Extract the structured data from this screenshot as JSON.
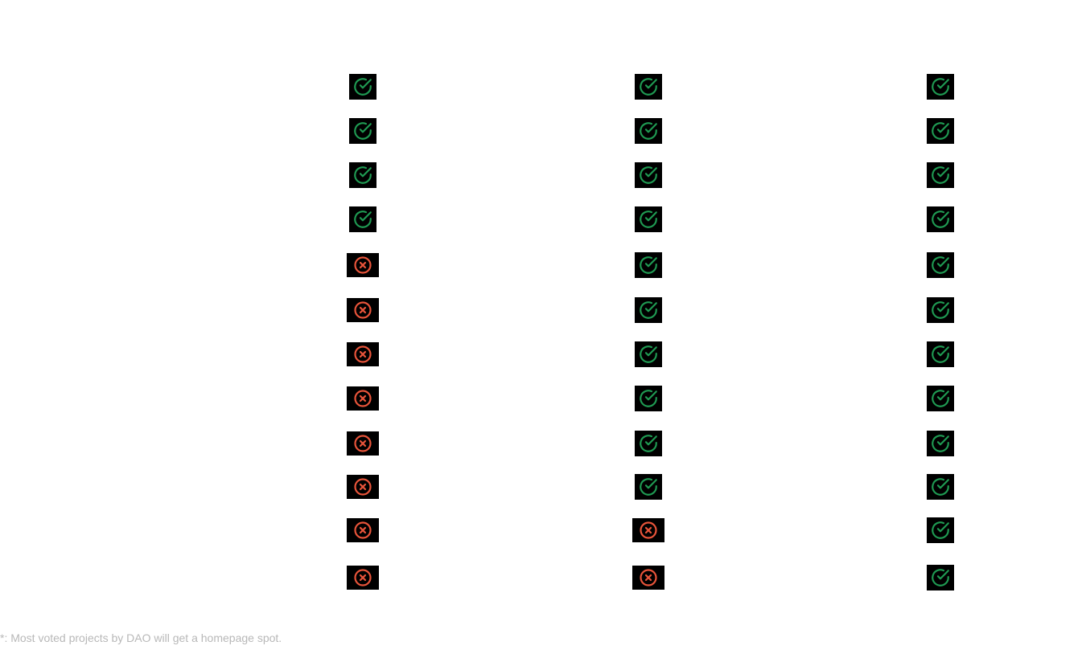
{
  "columns": [
    {
      "statuses": [
        "check",
        "check",
        "check",
        "check",
        "cross",
        "cross",
        "cross",
        "cross",
        "cross",
        "cross",
        "cross",
        "cross"
      ]
    },
    {
      "statuses": [
        "check",
        "check",
        "check",
        "check",
        "check",
        "check",
        "check",
        "check",
        "check",
        "check",
        "cross",
        "cross"
      ]
    },
    {
      "statuses": [
        "check",
        "check",
        "check",
        "check",
        "check",
        "check",
        "check",
        "check",
        "check",
        "check",
        "check",
        "check"
      ]
    }
  ],
  "icons": {
    "check": {
      "name": "check-circle-icon",
      "color": "#1f9a52"
    },
    "cross": {
      "name": "x-circle-icon",
      "color": "#e8543a"
    }
  },
  "footnote": {
    "text": "*:  Most voted projects by DAO will get a homepage spot."
  }
}
